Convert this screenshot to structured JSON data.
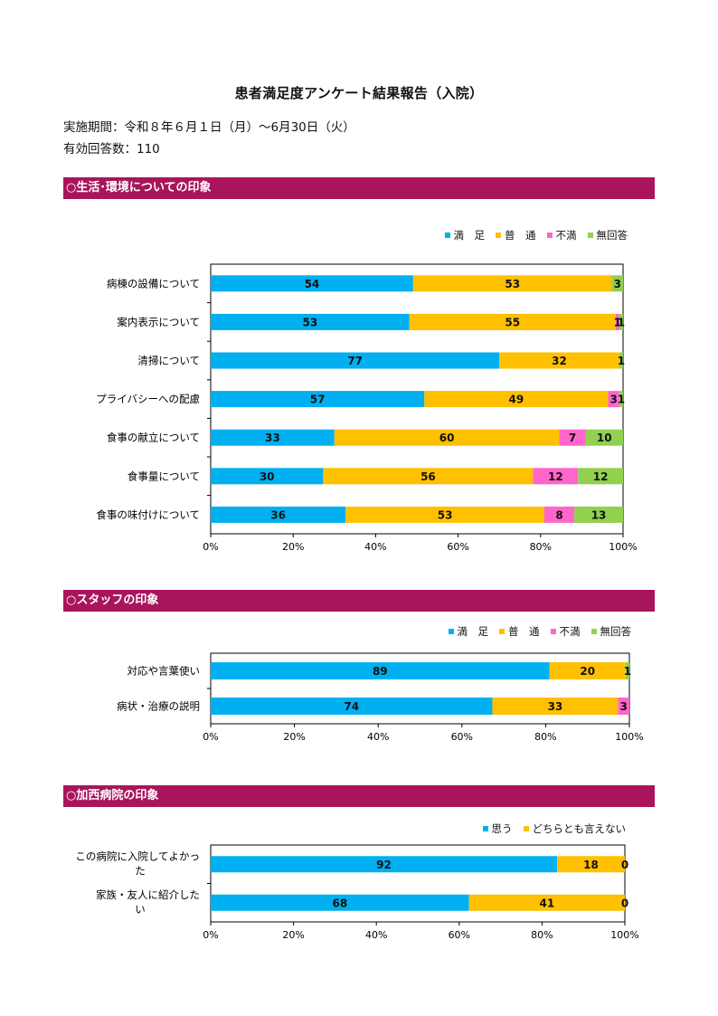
{
  "title": "患者満足度アンケート結果報告（入院）",
  "period": "実施期間：令和８年６月１日（月）～6月30日（火）",
  "responses": "有効回答数：110",
  "colors": {
    "section": "#a8155c",
    "satisfied": "#00b0f0",
    "normal": "#ffc000",
    "dissatisfied": "#ff66cc",
    "noanswer": "#92d050"
  },
  "sections": [
    {
      "heading": "○生活･環境についての印象"
    },
    {
      "heading": "○スタッフの印象"
    },
    {
      "heading": "○加西病院の印象"
    }
  ],
  "chart_data": [
    {
      "type": "bar",
      "orientation": "horizontal-stacked-100",
      "categories": [
        "病棟の設備について",
        "案内表示について",
        "清掃について",
        "プライバシーへの配慮",
        "食事の献立について",
        "食事量について",
        "食事の味付けについて"
      ],
      "series": [
        {
          "name": "満　足",
          "color": "#00b0f0",
          "values": [
            54,
            53,
            77,
            57,
            33,
            30,
            36
          ]
        },
        {
          "name": "普　通",
          "color": "#ffc000",
          "values": [
            53,
            55,
            32,
            49,
            60,
            56,
            53
          ]
        },
        {
          "name": "不満",
          "color": "#ff66cc",
          "values": [
            0,
            1,
            0,
            3,
            7,
            12,
            8
          ]
        },
        {
          "name": "無回答",
          "color": "#92d050",
          "values": [
            3,
            1,
            1,
            1,
            10,
            12,
            13
          ]
        }
      ],
      "xticks": [
        "0%",
        "20%",
        "40%",
        "60%",
        "80%",
        "100%"
      ],
      "legend": "top-right"
    },
    {
      "type": "bar",
      "orientation": "horizontal-stacked-100",
      "categories": [
        "対応や言葉使い",
        "病状・治療の説明"
      ],
      "series": [
        {
          "name": "満　足",
          "color": "#00b0f0",
          "values": [
            89,
            74
          ]
        },
        {
          "name": "普　通",
          "color": "#ffc000",
          "values": [
            20,
            33
          ]
        },
        {
          "name": "不満",
          "color": "#ff66cc",
          "values": [
            0,
            3
          ]
        },
        {
          "name": "無回答",
          "color": "#92d050",
          "values": [
            1,
            0
          ]
        }
      ],
      "xticks": [
        "0%",
        "20%",
        "40%",
        "60%",
        "80%",
        "100%"
      ],
      "legend": "top-right"
    },
    {
      "type": "bar",
      "orientation": "horizontal-stacked-100",
      "categories": [
        "この病院に入院してよかった",
        "家族・友人に紹介したい"
      ],
      "series": [
        {
          "name": "思う",
          "color": "#00b0f0",
          "values": [
            92,
            68
          ]
        },
        {
          "name": "どちらとも言えない",
          "color": "#ffc000",
          "values": [
            18,
            41
          ]
        },
        {
          "name": "",
          "color": "#ff66cc",
          "values": [
            0,
            0
          ]
        }
      ],
      "xticks": [
        "0%",
        "20%",
        "40%",
        "60%",
        "80%",
        "100%"
      ],
      "legend": "top-right"
    }
  ]
}
